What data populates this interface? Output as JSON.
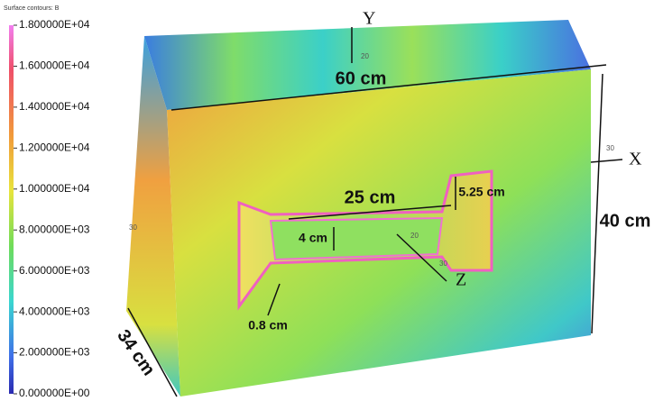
{
  "legend": {
    "title": "Surface contours: B",
    "ticks": [
      "1.800000E+04",
      "1.600000E+04",
      "1.400000E+04",
      "1.200000E+04",
      "1.000000E+04",
      "8.000000E+03",
      "6.000000E+03",
      "4.000000E+03",
      "2.000000E+03",
      "0.000000E+00"
    ]
  },
  "axes": {
    "x": "X",
    "y": "Y",
    "z": "Z"
  },
  "axis_ticks": [
    "20",
    "30",
    "20",
    "30",
    "30"
  ],
  "dimensions": {
    "width": "60 cm",
    "height": "40 cm",
    "depth": "34 cm",
    "gap": "25 cm",
    "pole": "5.25 cm",
    "slot": "4 cm",
    "coil": "0.8 cm"
  }
}
